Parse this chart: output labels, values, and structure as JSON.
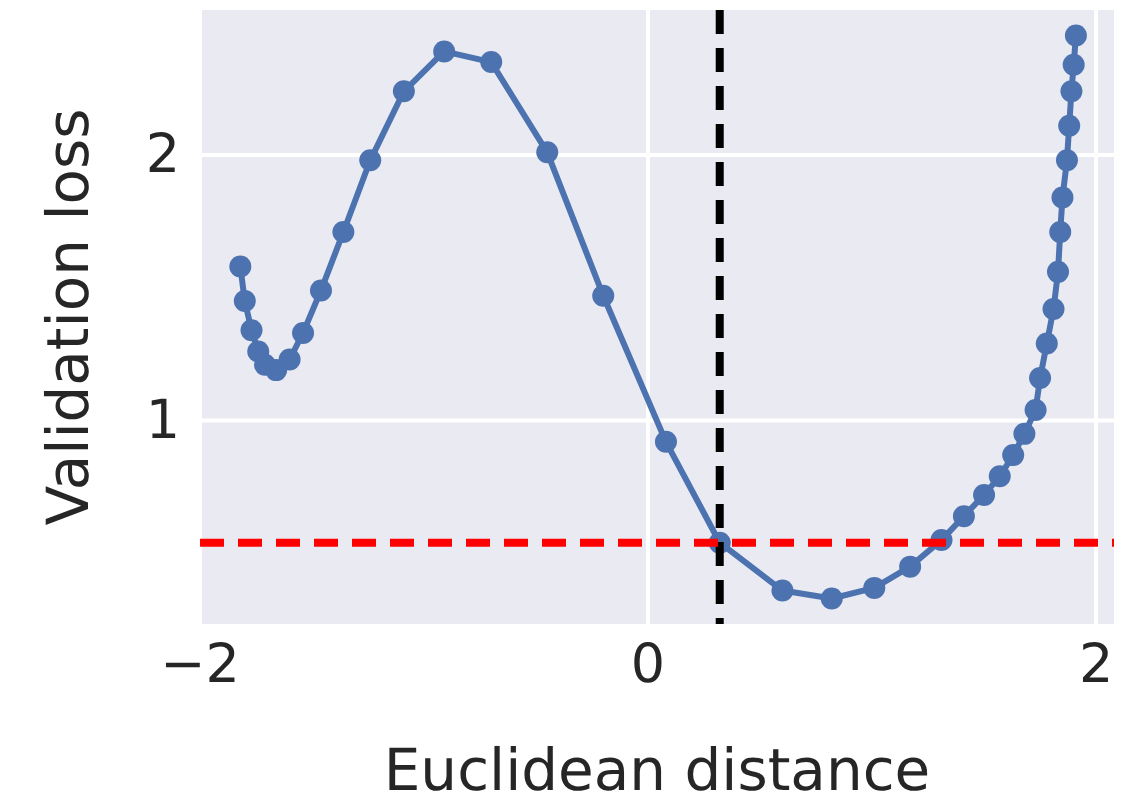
{
  "chart_data": {
    "type": "line",
    "xlabel": "Euclidean distance",
    "ylabel": "Validation loss",
    "xlim": [
      -2,
      2.08
    ],
    "ylim": [
      0.234,
      2.546
    ],
    "xticks": [
      {
        "value": -2,
        "label": "−2"
      },
      0,
      2
    ],
    "yticks": [
      1,
      2
    ],
    "grid": true,
    "marker": "circle",
    "line_style": "solid",
    "series": [
      {
        "color": "#4c72b0",
        "x": [
          -1.82,
          -1.8,
          -1.77,
          -1.74,
          -1.71,
          -1.66,
          -1.6,
          -1.54,
          -1.46,
          -1.36,
          -1.24,
          -1.09,
          -0.91,
          -0.7,
          -0.45,
          -0.2,
          0.08,
          0.32,
          0.6,
          0.82,
          1.01,
          1.17,
          1.31,
          1.41,
          1.5,
          1.57,
          1.63,
          1.68,
          1.73,
          1.75,
          1.78,
          1.81,
          1.83,
          1.84,
          1.85,
          1.87,
          1.88,
          1.89,
          1.9,
          1.91
        ],
        "values": [
          1.58,
          1.45,
          1.34,
          1.26,
          1.21,
          1.19,
          1.23,
          1.33,
          1.49,
          1.71,
          1.98,
          2.24,
          2.39,
          2.35,
          2.01,
          1.47,
          0.92,
          0.54,
          0.36,
          0.33,
          0.37,
          0.45,
          0.55,
          0.64,
          0.72,
          0.79,
          0.87,
          0.95,
          1.04,
          1.16,
          1.29,
          1.42,
          1.56,
          1.71,
          1.84,
          1.98,
          2.11,
          2.24,
          2.34,
          2.45
        ]
      }
    ],
    "ref_lines": [
      {
        "axis": "x",
        "value": 0.32,
        "color": "#000000",
        "line_style": "dashed"
      },
      {
        "axis": "y",
        "value": 0.54,
        "color": "#ff0000",
        "line_style": "dashed"
      }
    ]
  }
}
